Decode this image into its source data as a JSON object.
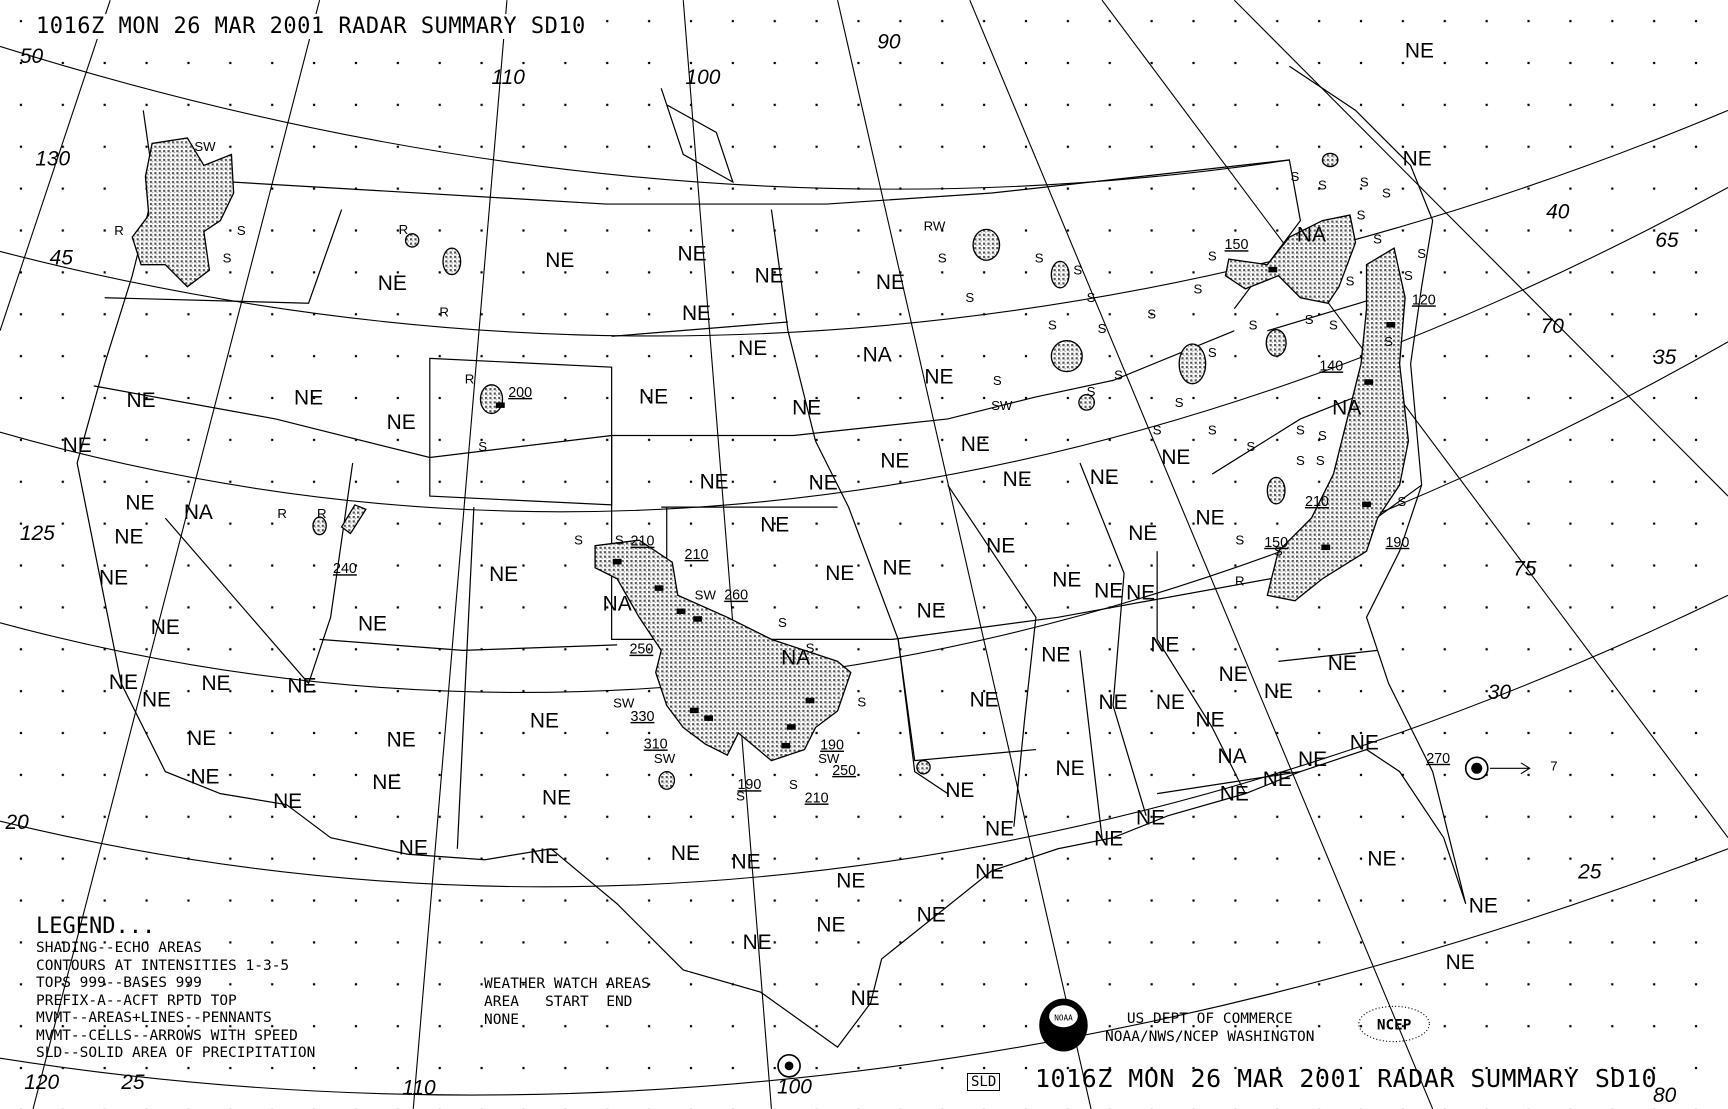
{
  "header": {
    "title": "1016Z MON 26 MAR 2001 RADAR SUMMARY SD10"
  },
  "legend": {
    "heading": "LEGEND...",
    "lines": [
      "SHADING--ECHO AREAS",
      "CONTOURS AT INTENSITIES 1-3-5",
      "TOPS 999--BASES 999",
      "PREFIX-A--ACFT RPTD TOP",
      "MVMT--AREAS+LINES--PENNANTS",
      "MVMT--CELLS--ARROWS WITH SPEED",
      "SLD--SOLID AREA OF PRECIPITATION"
    ]
  },
  "watch": {
    "heading": "WEATHER WATCH AREAS",
    "columns": "AREA   START  END",
    "value": "NONE"
  },
  "footer": {
    "agency_line1": "US DEPT OF COMMERCE",
    "agency_line2": "NOAA/NWS/NCEP WASHINGTON",
    "noaa_logo": "NOAA",
    "ncep_logo": "NCEP",
    "sld_box": "SLD",
    "title": "1016Z MON 26 MAR 2001 RADAR SUMMARY SD10"
  },
  "grid_labels": [
    "50",
    "130",
    "45",
    "125",
    "120",
    "25",
    "20",
    "110",
    "100",
    "90",
    "40",
    "65",
    "70",
    "35",
    "75",
    "30",
    "25",
    "80",
    "110",
    "100"
  ],
  "ne_label": "NE",
  "na_label": "NA",
  "small_labels": {
    "s": "S",
    "r": "R",
    "sw": "SW",
    "rw": "RW"
  },
  "tops": [
    "200",
    "240",
    "210",
    "210",
    "260",
    "250",
    "330",
    "310",
    "190",
    "250",
    "190",
    "210",
    "150",
    "120",
    "140",
    "210",
    "150",
    "190",
    "270"
  ],
  "cell_movement_speed": "7",
  "colors": {
    "ink": "#000000",
    "background": "#ffffff",
    "echo_shading": "#b8b8b8"
  }
}
